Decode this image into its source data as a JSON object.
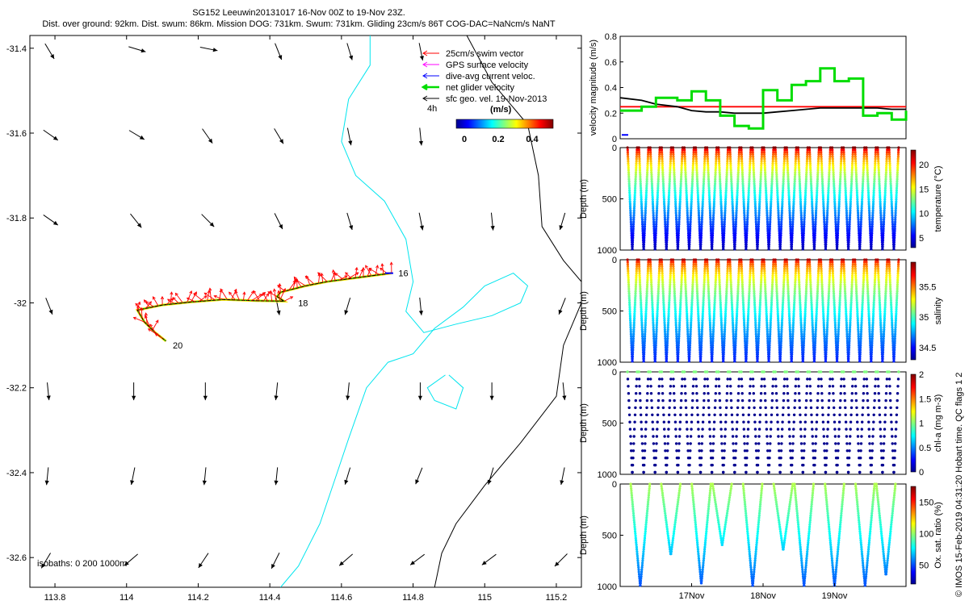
{
  "header": {
    "line1": "SG152 Leeuwin20131017 16-Nov 00Z to 19-Nov 23Z.",
    "line2": "Dist. over ground: 92km. Dist. swum: 86km. Mission DOG: 731km. Swum: 731km. Gliding 23cm/s 86T COG-DAC=NaNcm/s NaNT"
  },
  "map": {
    "x_ticks": [
      113.8,
      114,
      114.2,
      114.4,
      114.6,
      114.8,
      115,
      115.2
    ],
    "y_ticks": [
      -31.4,
      -31.6,
      -31.8,
      -32,
      -32.2,
      -32.4,
      -32.6
    ],
    "x_tick_labels": [
      "113.8",
      "114",
      "114.2",
      "114.4",
      "114.6",
      "114.8",
      "115",
      "115.2"
    ],
    "y_tick_labels": [
      "-31.4",
      "-31.6",
      "-31.8",
      "-32",
      "-32.2",
      "-32.4",
      "-32.6"
    ],
    "xlim": [
      113.73,
      115.27
    ],
    "ylim": [
      -32.67,
      -31.37
    ],
    "isobaths_label": "isobaths: 0   200  1000m",
    "legend": [
      {
        "label": "25cm/s swim vector",
        "color": "#ff0000"
      },
      {
        "label": "GPS surface velocity",
        "color": "#ff00ff"
      },
      {
        "label": "dive-avg current veloc.",
        "color": "#0000ff"
      },
      {
        "label": "net glider velocity",
        "color": "#00dd00"
      },
      {
        "label": "sfc geo. vel. 19-Nov-2013",
        "color": "#000000"
      }
    ],
    "legend_scale_label": "4h",
    "colorbar": {
      "title": "(m/s)",
      "ticks": [
        "0",
        "0.2",
        "0.4"
      ]
    },
    "day_labels": [
      {
        "text": "16",
        "lon": 114.75,
        "lat": -31.93
      },
      {
        "text": "18",
        "lon": 114.47,
        "lat": -32.0
      },
      {
        "text": "20",
        "lon": 114.12,
        "lat": -32.1
      }
    ],
    "track": [
      [
        114.74,
        -31.93
      ],
      [
        114.65,
        -31.94
      ],
      [
        114.56,
        -31.95
      ],
      [
        114.5,
        -31.96
      ],
      [
        114.43,
        -31.975
      ],
      [
        114.42,
        -31.985
      ],
      [
        114.44,
        -31.996
      ],
      [
        114.36,
        -31.995
      ],
      [
        114.27,
        -31.992
      ],
      [
        114.18,
        -31.998
      ],
      [
        114.1,
        -32.005
      ],
      [
        114.03,
        -32.017
      ],
      [
        114.05,
        -32.045
      ],
      [
        114.08,
        -32.07
      ],
      [
        114.11,
        -32.09
      ]
    ],
    "isobath_cyan": [
      [
        114.68,
        -31.37
      ],
      [
        114.68,
        -31.44
      ],
      [
        114.62,
        -31.52
      ],
      [
        114.6,
        -31.62
      ],
      [
        114.64,
        -31.7
      ],
      [
        114.72,
        -31.76
      ],
      [
        114.78,
        -31.85
      ],
      [
        114.8,
        -31.95
      ],
      [
        114.78,
        -32.02
      ],
      [
        114.83,
        -32.07
      ],
      [
        114.92,
        -32.05
      ],
      [
        115.02,
        -32.03
      ],
      [
        115.1,
        -32.0
      ],
      [
        115.12,
        -31.96
      ],
      [
        115.08,
        -31.93
      ],
      [
        115.0,
        -31.96
      ],
      [
        114.94,
        -32.01
      ],
      [
        114.86,
        -32.06
      ],
      [
        114.8,
        -32.12
      ],
      [
        114.73,
        -32.14
      ],
      [
        114.67,
        -32.2
      ],
      [
        114.62,
        -32.32
      ],
      [
        114.58,
        -32.42
      ],
      [
        114.54,
        -32.52
      ],
      [
        114.48,
        -32.62
      ],
      [
        114.43,
        -32.67
      ]
    ],
    "isobath_cyan2": [
      [
        114.89,
        -32.17
      ],
      [
        114.84,
        -32.2
      ],
      [
        114.86,
        -32.23
      ],
      [
        114.92,
        -32.25
      ],
      [
        114.94,
        -32.2
      ],
      [
        114.9,
        -32.17
      ]
    ],
    "isobath_black": [
      [
        114.95,
        -31.37
      ],
      [
        115.02,
        -31.48
      ],
      [
        115.12,
        -31.58
      ],
      [
        115.15,
        -31.7
      ],
      [
        115.16,
        -31.82
      ],
      [
        115.22,
        -31.9
      ],
      [
        115.27,
        -31.95
      ]
    ],
    "isobath_black2": [
      [
        115.27,
        -32.0
      ],
      [
        115.22,
        -32.1
      ],
      [
        115.2,
        -32.22
      ],
      [
        115.1,
        -32.33
      ],
      [
        115.0,
        -32.43
      ],
      [
        114.92,
        -32.52
      ],
      [
        114.88,
        -32.59
      ],
      [
        114.86,
        -32.67
      ]
    ],
    "geo_arrows": [
      {
        "lon": 113.78,
        "lat": -31.4,
        "u": 0.6,
        "v": -1
      },
      {
        "lon": 114.02,
        "lat": -31.4,
        "u": 1,
        "v": -0.3
      },
      {
        "lon": 114.22,
        "lat": -31.4,
        "u": 1,
        "v": -0.2
      },
      {
        "lon": 114.42,
        "lat": -31.4,
        "u": 0.4,
        "v": -1
      },
      {
        "lon": 114.62,
        "lat": -31.4,
        "u": 0.3,
        "v": -1
      },
      {
        "lon": 114.82,
        "lat": -31.4,
        "u": 0.2,
        "v": -1
      },
      {
        "lon": 113.78,
        "lat": -31.6,
        "u": 1,
        "v": -0.7
      },
      {
        "lon": 114.02,
        "lat": -31.6,
        "u": 1,
        "v": -0.6
      },
      {
        "lon": 114.22,
        "lat": -31.6,
        "u": 0.7,
        "v": -1
      },
      {
        "lon": 114.42,
        "lat": -31.6,
        "u": 0.6,
        "v": -1
      },
      {
        "lon": 114.62,
        "lat": -31.6,
        "u": 0.2,
        "v": -1
      },
      {
        "lon": 114.82,
        "lat": -31.6,
        "u": 0.1,
        "v": -1
      },
      {
        "lon": 113.78,
        "lat": -31.8,
        "u": 1,
        "v": -0.7
      },
      {
        "lon": 114.02,
        "lat": -31.8,
        "u": 0.8,
        "v": -1
      },
      {
        "lon": 114.22,
        "lat": -31.8,
        "u": 0.8,
        "v": -0.8
      },
      {
        "lon": 114.42,
        "lat": -31.8,
        "u": 0.5,
        "v": -1
      },
      {
        "lon": 114.62,
        "lat": -31.8,
        "u": 0.3,
        "v": -1
      },
      {
        "lon": 114.82,
        "lat": -31.8,
        "u": 0.2,
        "v": -1
      },
      {
        "lon": 115.02,
        "lat": -31.8,
        "u": 0.1,
        "v": -1
      },
      {
        "lon": 115.22,
        "lat": -31.8,
        "u": -0.3,
        "v": -1
      },
      {
        "lon": 113.78,
        "lat": -32.0,
        "u": 0.4,
        "v": -1
      },
      {
        "lon": 114.42,
        "lat": -32.0,
        "u": 0.2,
        "v": -1
      },
      {
        "lon": 114.62,
        "lat": -32.0,
        "u": -0.3,
        "v": -1
      },
      {
        "lon": 114.82,
        "lat": -32.0,
        "u": 0.1,
        "v": -1
      },
      {
        "lon": 115.22,
        "lat": -32.0,
        "u": -0.4,
        "v": -1
      },
      {
        "lon": 113.78,
        "lat": -32.2,
        "u": 0.1,
        "v": -1
      },
      {
        "lon": 114.02,
        "lat": -32.2,
        "u": 0,
        "v": -1
      },
      {
        "lon": 114.22,
        "lat": -32.2,
        "u": 0,
        "v": -1
      },
      {
        "lon": 114.42,
        "lat": -32.2,
        "u": -0.1,
        "v": -1
      },
      {
        "lon": 114.62,
        "lat": -32.2,
        "u": -0.1,
        "v": -1
      },
      {
        "lon": 114.82,
        "lat": -32.2,
        "u": 0,
        "v": -1
      },
      {
        "lon": 115.02,
        "lat": -32.2,
        "u": 0,
        "v": -1
      },
      {
        "lon": 115.22,
        "lat": -32.2,
        "u": 0.1,
        "v": -1
      },
      {
        "lon": 113.78,
        "lat": -32.4,
        "u": -0.1,
        "v": -1
      },
      {
        "lon": 114.02,
        "lat": -32.4,
        "u": -0.2,
        "v": -1
      },
      {
        "lon": 114.22,
        "lat": -32.4,
        "u": -0.1,
        "v": -1
      },
      {
        "lon": 114.42,
        "lat": -32.4,
        "u": -0.1,
        "v": -1
      },
      {
        "lon": 114.62,
        "lat": -32.4,
        "u": -0.3,
        "v": -1
      },
      {
        "lon": 114.82,
        "lat": -32.4,
        "u": -0.4,
        "v": -1
      },
      {
        "lon": 115.02,
        "lat": -32.4,
        "u": -0.3,
        "v": -1
      },
      {
        "lon": 115.22,
        "lat": -32.4,
        "u": -0.2,
        "v": -1
      },
      {
        "lon": 113.78,
        "lat": -32.6,
        "u": -0.6,
        "v": -1
      },
      {
        "lon": 114.02,
        "lat": -32.6,
        "u": -0.7,
        "v": -0.6
      },
      {
        "lon": 114.22,
        "lat": -32.6,
        "u": -0.6,
        "v": -0.9
      },
      {
        "lon": 114.42,
        "lat": -32.6,
        "u": -0.5,
        "v": -1
      },
      {
        "lon": 114.62,
        "lat": -32.6,
        "u": -0.8,
        "v": -0.7
      },
      {
        "lon": 114.82,
        "lat": -32.6,
        "u": -0.8,
        "v": -0.6
      },
      {
        "lon": 115.02,
        "lat": -32.6,
        "u": -0.8,
        "v": -0.6
      },
      {
        "lon": 115.22,
        "lat": -32.6,
        "u": -0.7,
        "v": -0.7
      }
    ]
  },
  "chart_data": [
    {
      "type": "line",
      "ylabel": "velocity magnitude (m/s)",
      "ylim": [
        0,
        0.8
      ],
      "y_ticks": [
        0,
        0.2,
        0.4,
        0.6,
        0.8
      ],
      "x_range_days": [
        16,
        20
      ],
      "x": [
        16.0,
        16.3,
        16.5,
        16.8,
        17.0,
        17.2,
        17.4,
        17.6,
        17.8,
        18.0,
        18.2,
        18.4,
        18.6,
        18.8,
        19.0,
        19.2,
        19.4,
        19.6,
        19.8,
        20.0
      ],
      "series": [
        {
          "color": "#ff0000",
          "values": [
            0.25,
            0.25,
            0.25,
            0.25,
            0.25,
            0.25,
            0.25,
            0.25,
            0.25,
            0.25,
            0.25,
            0.25,
            0.25,
            0.25,
            0.25,
            0.25,
            0.25,
            0.25,
            0.25,
            0.25
          ]
        },
        {
          "color": "#000000",
          "values": [
            0.32,
            0.3,
            0.27,
            0.25,
            0.22,
            0.21,
            0.21,
            0.2,
            0.2,
            0.2,
            0.21,
            0.22,
            0.23,
            0.24,
            0.24,
            0.24,
            0.24,
            0.24,
            0.23,
            0.23
          ]
        },
        {
          "color": "#00dd00",
          "values": [
            0.22,
            0.25,
            0.32,
            0.3,
            0.37,
            0.3,
            0.18,
            0.1,
            0.08,
            0.38,
            0.3,
            0.42,
            0.45,
            0.55,
            0.45,
            0.47,
            0.18,
            0.2,
            0.15,
            0.22
          ]
        }
      ]
    },
    {
      "type": "heatmap",
      "ylabel": "Depth (m)",
      "ylim": [
        1000,
        0
      ],
      "y_ticks": [
        0,
        500,
        1000
      ],
      "colorbar_label": "temperature (°C)",
      "colorbar_ticks": [
        5,
        10,
        15,
        20
      ],
      "crange": [
        3,
        23
      ],
      "dives": 24
    },
    {
      "type": "heatmap",
      "ylabel": "Depth (m)",
      "ylim": [
        1000,
        0
      ],
      "y_ticks": [
        0,
        500,
        1000
      ],
      "colorbar_label": "salinity",
      "colorbar_ticks": [
        34.5,
        35,
        35.5
      ],
      "crange": [
        34.3,
        35.9
      ],
      "dives": 24
    },
    {
      "type": "scatter",
      "ylabel": "Depth (m)",
      "ylim": [
        1000,
        0
      ],
      "y_ticks": [
        0,
        500,
        1000
      ],
      "colorbar_label": "chl-a (mg m-3)",
      "colorbar_ticks": [
        0,
        0.5,
        1,
        1.5,
        2
      ],
      "crange": [
        0,
        2
      ],
      "dives": 24
    },
    {
      "type": "heatmap",
      "ylabel": "Depth (m)",
      "ylim": [
        1000,
        0
      ],
      "y_ticks": [
        0,
        500,
        1000
      ],
      "colorbar_label": "Ox. sat. ratio (%)",
      "colorbar_ticks": [
        50,
        100,
        150
      ],
      "crange": [
        20,
        175
      ],
      "dives": 10,
      "x_tick_labels": [
        "17Nov",
        "18Nov",
        "19Nov"
      ],
      "x_ticks": [
        17,
        18,
        19
      ]
    }
  ],
  "side_note": "© IMOS 15-Feb-2019 04:31:20 Hobart time. QC flags 1  2"
}
